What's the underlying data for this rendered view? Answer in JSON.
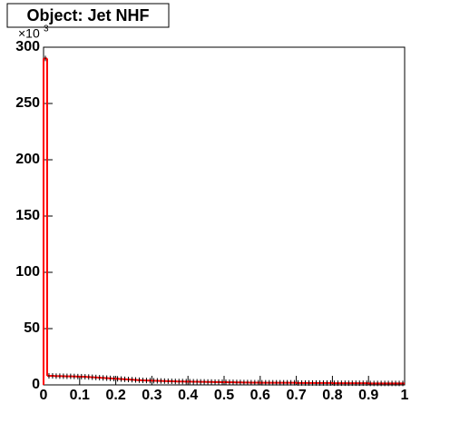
{
  "chart_data": {
    "type": "histogram",
    "title": "Object: Jet NHF",
    "y_multiplier": {
      "base": "×10",
      "exponent": "3"
    },
    "bins": [
      0,
      0.01,
      0.02,
      0.03,
      0.04,
      0.05,
      0.06,
      0.07,
      0.08,
      0.09,
      0.1,
      0.11,
      0.12,
      0.13,
      0.14,
      0.15,
      0.16,
      0.17,
      0.18,
      0.19,
      0.2,
      0.21,
      0.22,
      0.23,
      0.24,
      0.25,
      0.26,
      0.27,
      0.28,
      0.29,
      0.3,
      0.31,
      0.32,
      0.33,
      0.34,
      0.35,
      0.36,
      0.37,
      0.38,
      0.39,
      0.4,
      0.41,
      0.42,
      0.43,
      0.44,
      0.45,
      0.46,
      0.47,
      0.48,
      0.49,
      0.5,
      0.51,
      0.52,
      0.53,
      0.54,
      0.55,
      0.56,
      0.57,
      0.58,
      0.59,
      0.6,
      0.61,
      0.62,
      0.63,
      0.64,
      0.65,
      0.66,
      0.67,
      0.68,
      0.69,
      0.7,
      0.71,
      0.72,
      0.73,
      0.74,
      0.75,
      0.76,
      0.77,
      0.78,
      0.79,
      0.8,
      0.81,
      0.82,
      0.83,
      0.84,
      0.85,
      0.86,
      0.87,
      0.88,
      0.89,
      0.9,
      0.91,
      0.92,
      0.93,
      0.94,
      0.95,
      0.96,
      0.97,
      0.98,
      0.99,
      1
    ],
    "values": [
      290,
      8,
      8,
      7.8,
      7.8,
      7.7,
      7.6,
      7.6,
      7.5,
      7.4,
      7.3,
      7.2,
      7,
      6.8,
      6.6,
      6.4,
      6.2,
      6,
      5.8,
      5.6,
      5.4,
      5.2,
      5,
      4.8,
      4.6,
      4.4,
      4.2,
      4,
      3.9,
      3.8,
      3.7,
      3.6,
      3.5,
      3.4,
      3.3,
      3.2,
      3.1,
      3,
      3,
      2.9,
      2.9,
      2.8,
      2.8,
      2.7,
      2.7,
      2.6,
      2.6,
      2.5,
      2.5,
      2.4,
      2.4,
      2.3,
      2.3,
      2.2,
      2.2,
      2.1,
      2.1,
      2,
      2,
      2,
      1.9,
      1.9,
      1.9,
      1.9,
      1.9,
      1.9,
      1.9,
      1.9,
      1.9,
      1.9,
      1.7,
      1.7,
      1.7,
      1.7,
      1.7,
      1.7,
      1.7,
      1.7,
      1.7,
      1.7,
      1.5,
      1.5,
      1.5,
      1.5,
      1.5,
      1.5,
      1.5,
      1.5,
      1.5,
      1.5,
      1.3,
      1.3,
      1.3,
      1.3,
      1.3,
      1.3,
      1.3,
      1.3,
      1.3,
      1.3
    ],
    "color": "#ff0000",
    "marker_color": "#000000",
    "xlim": [
      0,
      1
    ],
    "xticks": [
      0,
      0.1,
      0.2,
      0.3,
      0.4,
      0.5,
      0.6,
      0.7,
      0.8,
      0.9,
      1
    ],
    "ylim": [
      0,
      300
    ],
    "yticks": [
      0,
      50,
      100,
      150,
      200,
      250,
      300
    ]
  }
}
